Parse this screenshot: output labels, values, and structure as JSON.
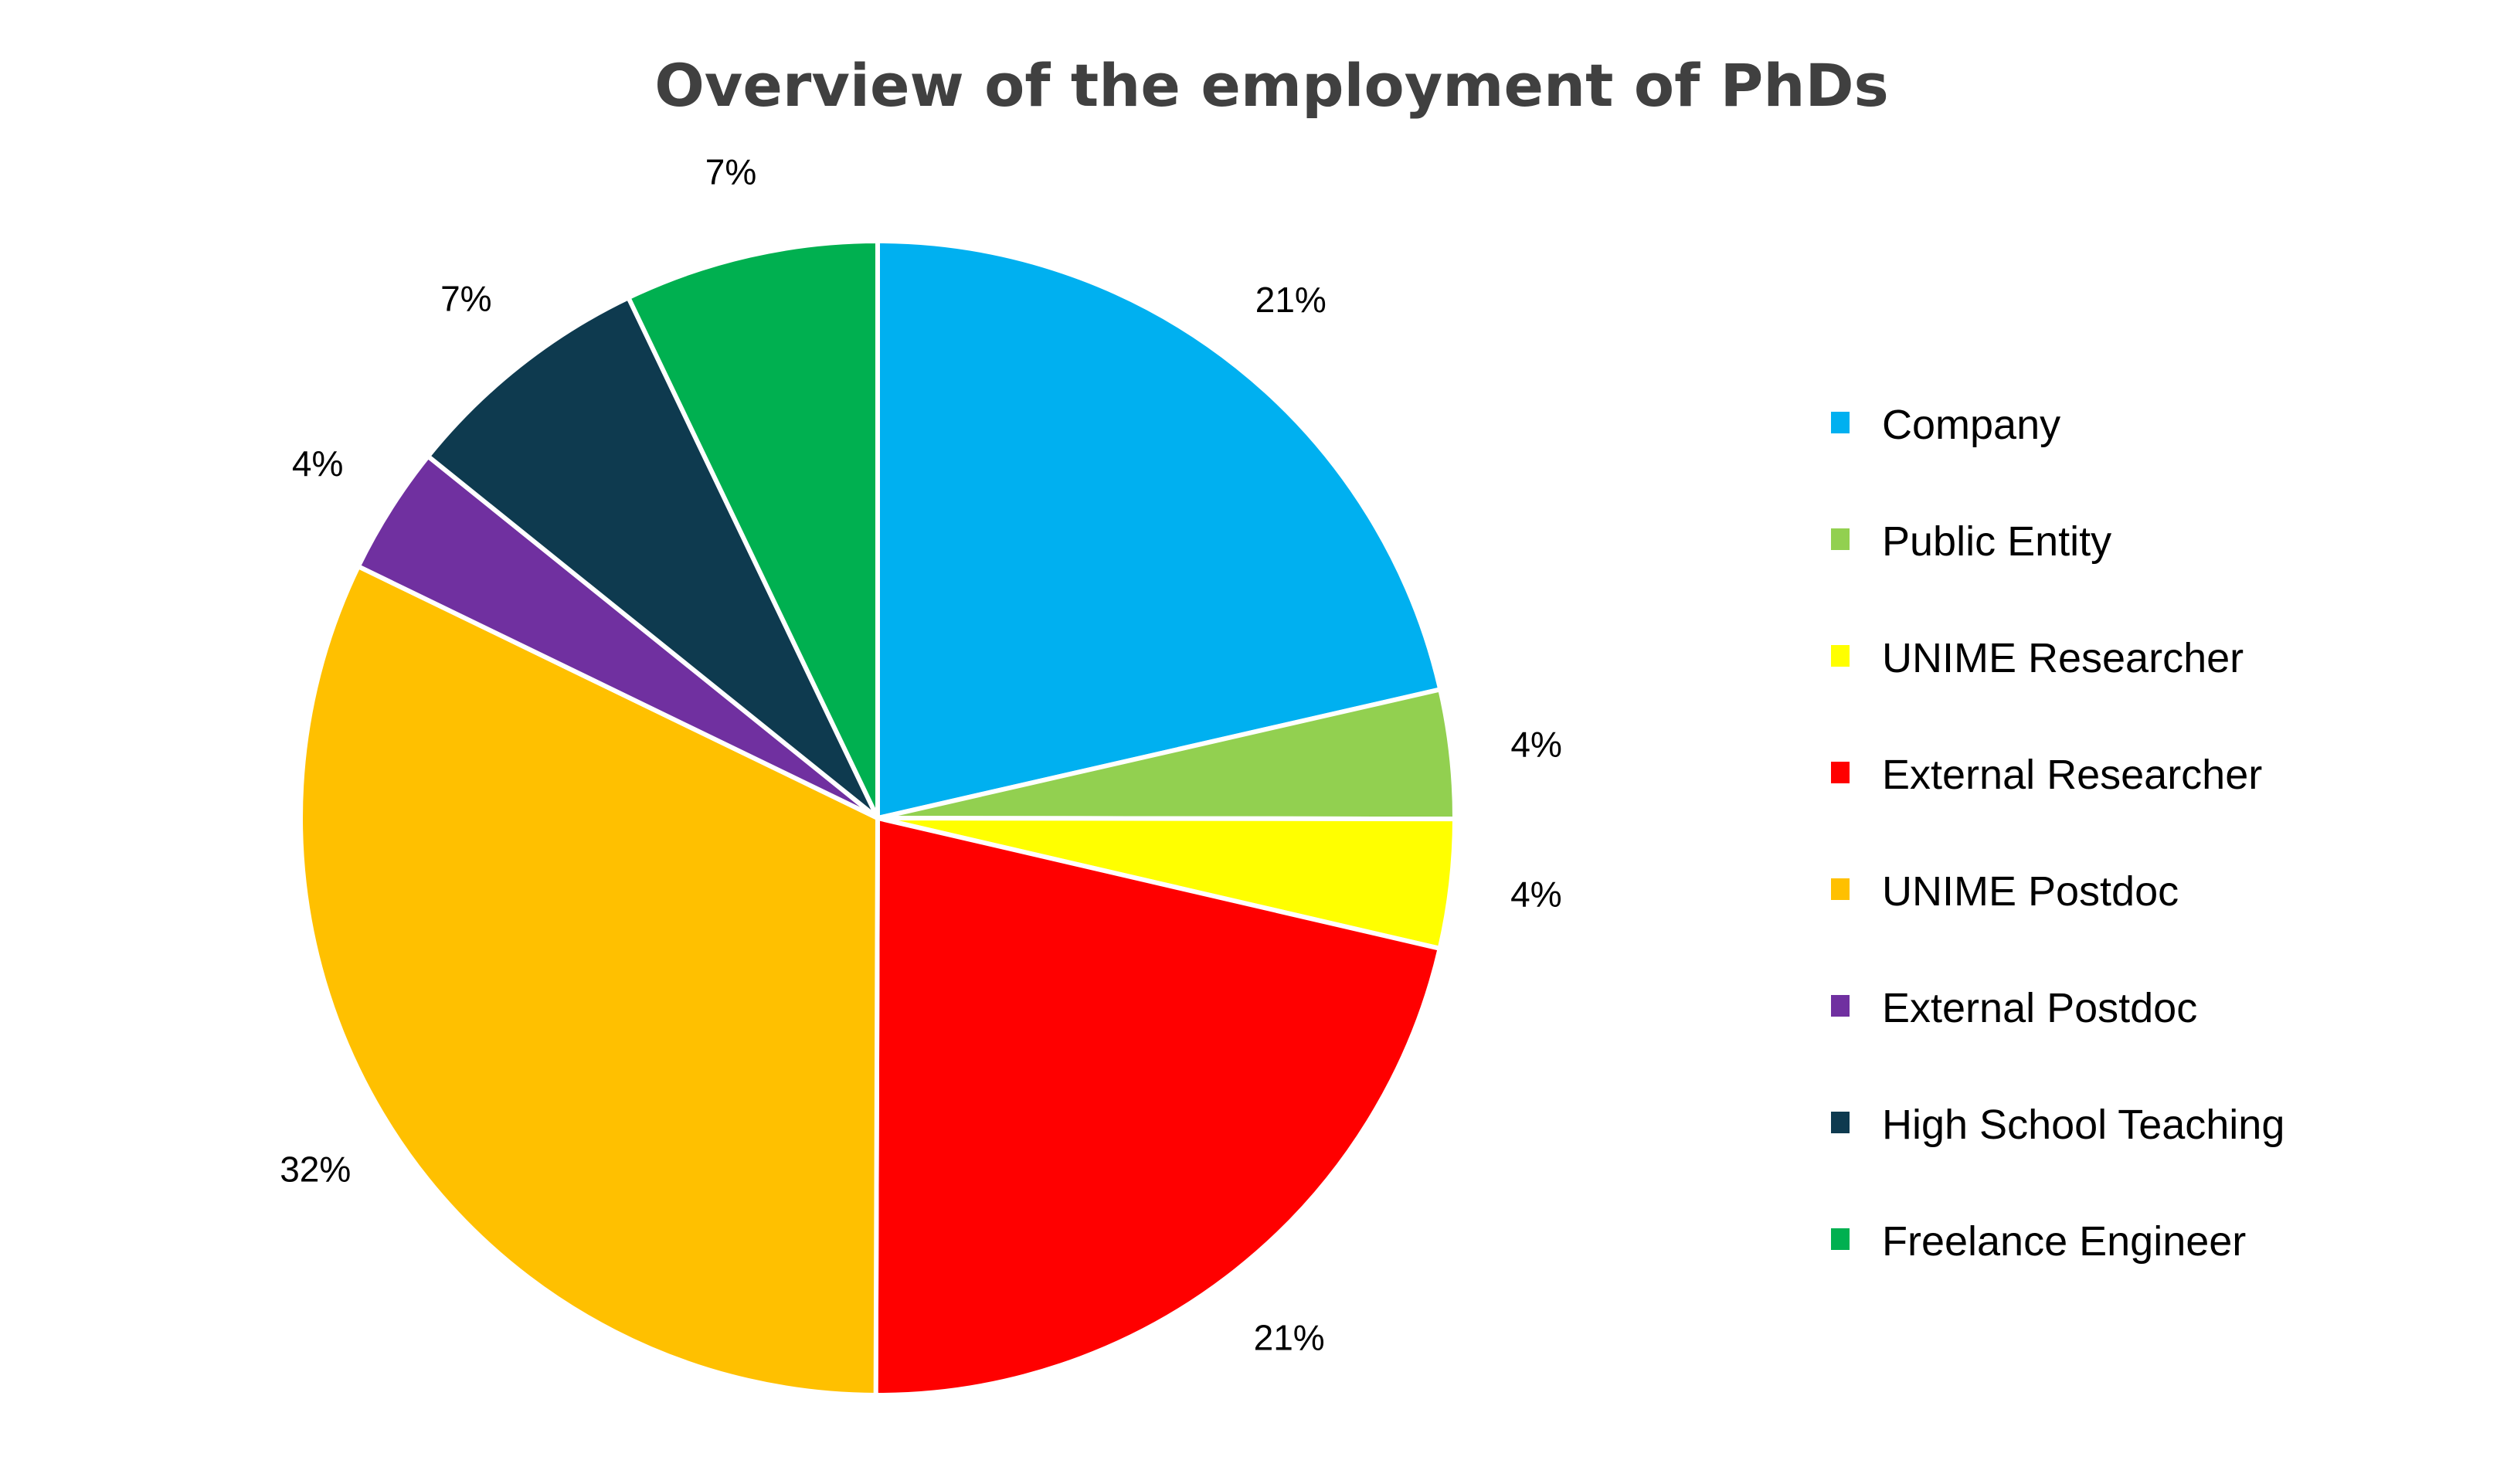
{
  "chart_data": {
    "type": "pie",
    "title": "Overview of the employment of PhDs",
    "categories": [
      "Company",
      "Public Entity",
      "UNIME Researcher",
      "External Researcher",
      "UNIME Postdoc",
      "External Postdoc",
      "High School Teaching",
      "Freelance Engineer"
    ],
    "values": [
      21.4,
      3.6,
      3.6,
      21.4,
      32.1,
      3.6,
      7.1,
      7.1
    ],
    "data_labels": [
      "21%",
      "4%",
      "4%",
      "21%",
      "32%",
      "4%",
      "7%",
      "7%"
    ],
    "colors": [
      "#00B0F0",
      "#92D050",
      "#FFFF00",
      "#FF0000",
      "#FFC000",
      "#7030A0",
      "#0E3A4F",
      "#00B050"
    ],
    "legend_position": "right",
    "start_angle": "12 o'clock, clockwise"
  }
}
